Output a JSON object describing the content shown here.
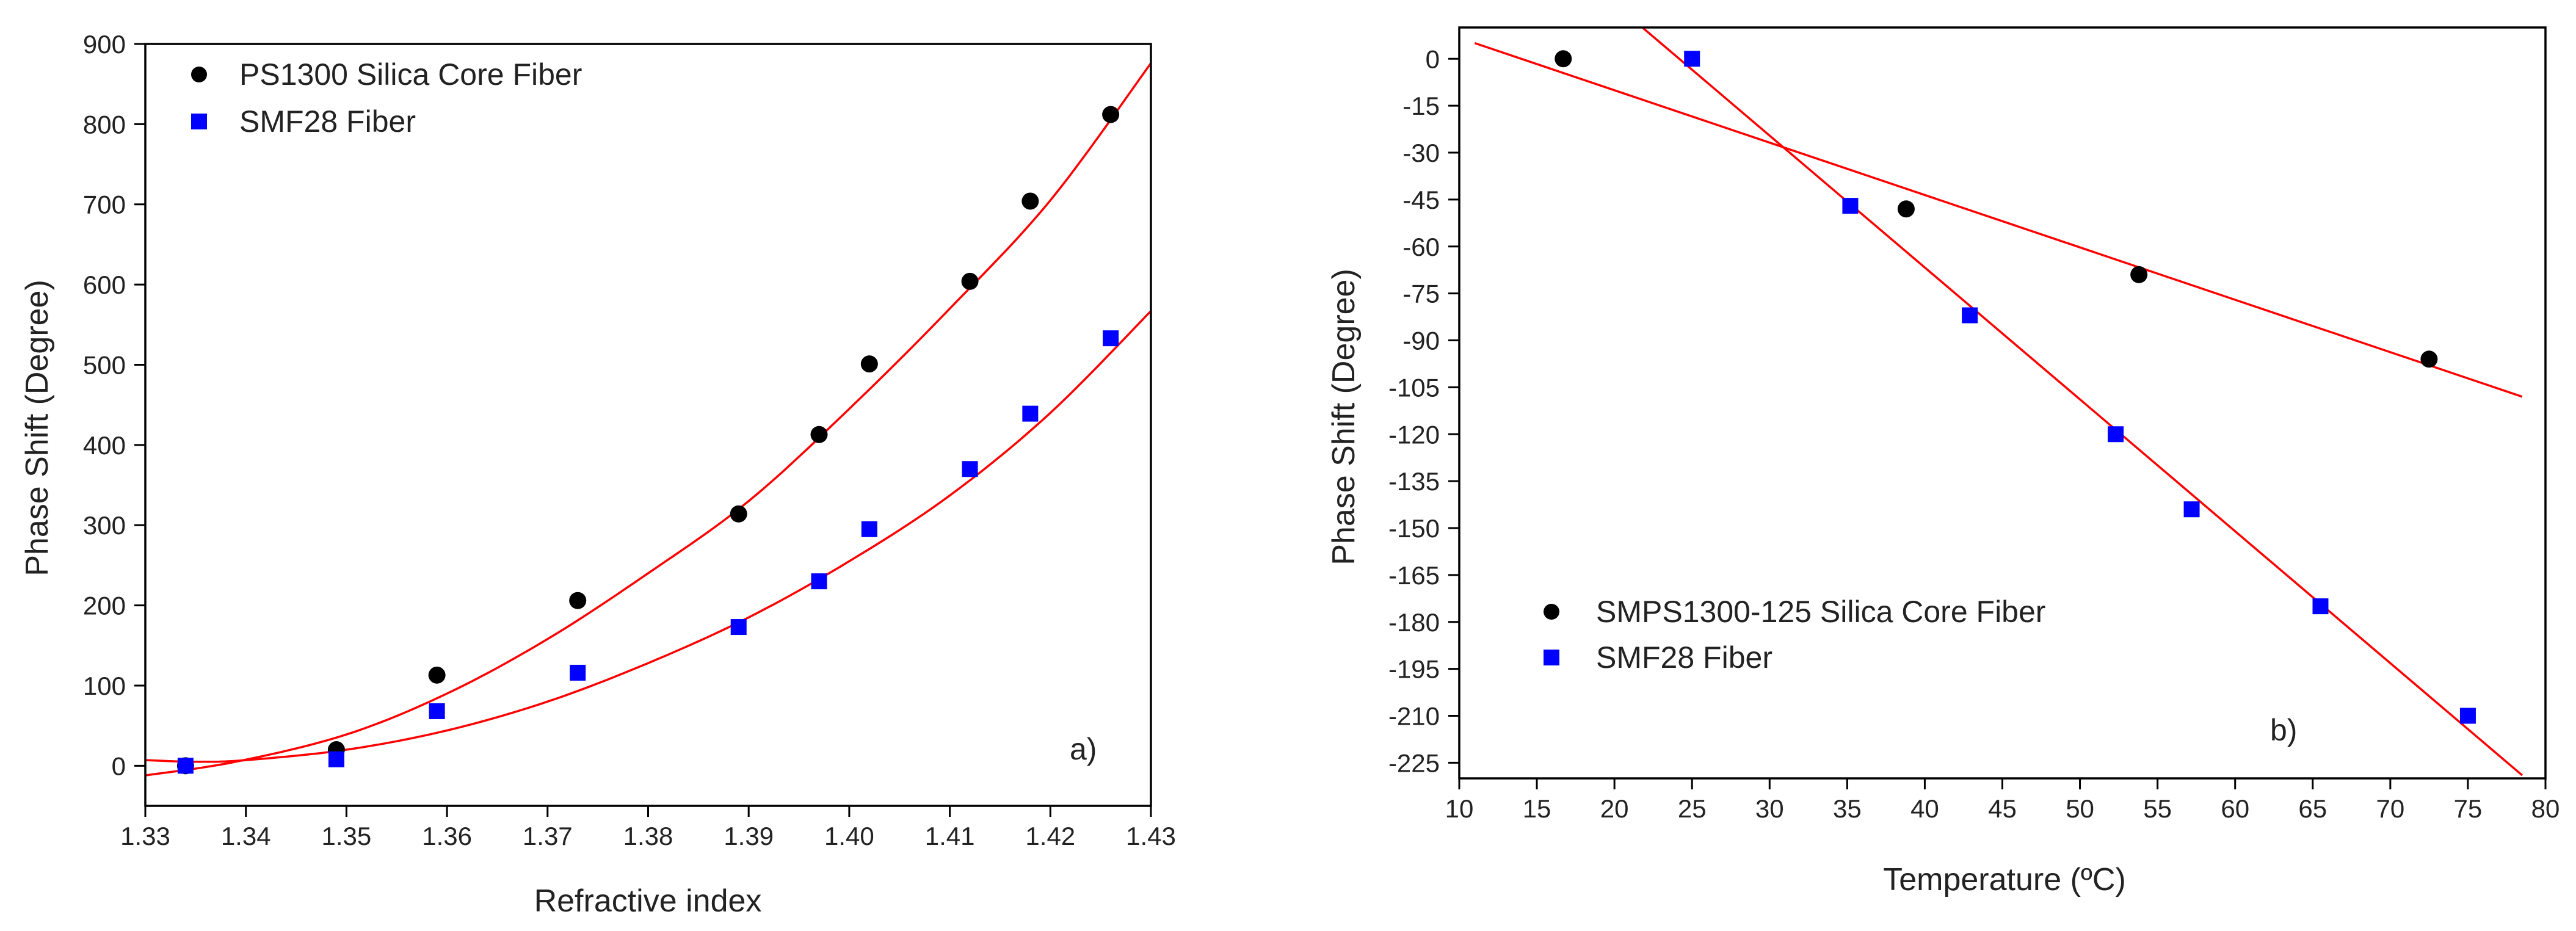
{
  "figure": {
    "colors": {
      "background": "#ffffff",
      "axis": "#000000",
      "fit_line": "#ff0000",
      "series_silica": "#000000",
      "series_smf28": "#0000ff"
    }
  },
  "chart_data": [
    {
      "type": "scatter",
      "panel_label": "a)",
      "title": "",
      "xlabel": "Refractive index",
      "ylabel": "Phase Shift (Degree)",
      "xlim": [
        1.33,
        1.43
      ],
      "ylim": [
        -50,
        900
      ],
      "x_ticks": [
        "1.33",
        "1.34",
        "1.35",
        "1.36",
        "1.37",
        "1.38",
        "1.39",
        "1.40",
        "1.41",
        "1.42",
        "1.43"
      ],
      "y_ticks": [
        "0",
        "100",
        "200",
        "300",
        "400",
        "500",
        "600",
        "700",
        "800",
        "900"
      ],
      "grid": false,
      "legend_position": "top-left",
      "series": [
        {
          "name": "PS1300 Silica Core Fiber",
          "marker": "circle",
          "color": "#000000",
          "x": [
            1.334,
            1.349,
            1.359,
            1.373,
            1.389,
            1.397,
            1.402,
            1.412,
            1.418,
            1.426
          ],
          "y": [
            0,
            20,
            113,
            206,
            314,
            413,
            501,
            604,
            704,
            812
          ]
        },
        {
          "name": "SMF28 Fiber",
          "marker": "square",
          "color": "#0000ff",
          "x": [
            1.334,
            1.349,
            1.359,
            1.373,
            1.389,
            1.397,
            1.402,
            1.412,
            1.418,
            1.426
          ],
          "y": [
            0,
            8,
            68,
            116,
            173,
            230,
            295,
            370,
            439,
            533
          ]
        }
      ],
      "fits": [
        {
          "name": "PS1300 quadratic fit",
          "type": "quadratic",
          "color": "#ff0000",
          "x": [
            1.33,
            1.339,
            1.35,
            1.36,
            1.37,
            1.38,
            1.39,
            1.4,
            1.41,
            1.42,
            1.43
          ],
          "y": [
            -12,
            5,
            39,
            90,
            158,
            240,
            330,
            445,
            570,
            705,
            876
          ]
        },
        {
          "name": "SMF28 quadratic fit",
          "type": "quadratic",
          "color": "#ff0000",
          "x": [
            1.33,
            1.335,
            1.34,
            1.35,
            1.36,
            1.37,
            1.38,
            1.39,
            1.4,
            1.41,
            1.42,
            1.43
          ],
          "y": [
            7,
            5,
            7,
            20,
            44,
            80,
            128,
            185,
            255,
            337,
            440,
            567
          ]
        }
      ]
    },
    {
      "type": "scatter",
      "panel_label": "b)",
      "title": "",
      "xlabel": "Temperature (ºC)",
      "ylabel": "Phase Shift (Degree)",
      "xlim": [
        10,
        80
      ],
      "ylim": [
        -230,
        10
      ],
      "x_ticks": [
        "10",
        "15",
        "20",
        "25",
        "30",
        "35",
        "40",
        "45",
        "50",
        "55",
        "60",
        "65",
        "70",
        "75",
        "80"
      ],
      "y_ticks": [
        "0",
        "-15",
        "-30",
        "-45",
        "-60",
        "-75",
        "-90",
        "-105",
        "-120",
        "-135",
        "-150",
        "-165",
        "-180",
        "-195",
        "-210",
        "-225"
      ],
      "grid": false,
      "legend_position": "bottom-left",
      "series": [
        {
          "name": "SMPS1300-125 Silica Core Fiber",
          "marker": "circle",
          "color": "#000000",
          "x": [
            16.7,
            38.8,
            53.8,
            72.5
          ],
          "y": [
            0,
            -48,
            -69,
            -96
          ]
        },
        {
          "name": "SMF28 Fiber",
          "marker": "square",
          "color": "#0000ff",
          "x": [
            25,
            35.2,
            42.9,
            52.3,
            57.2,
            65.5,
            75
          ],
          "y": [
            0,
            -47,
            -82,
            -120,
            -144,
            -175,
            -210
          ]
        }
      ],
      "fits": [
        {
          "name": "SMPS1300-125 linear fit",
          "type": "linear",
          "color": "#ff0000",
          "x": [
            11,
            78.5
          ],
          "y": [
            5,
            -108
          ]
        },
        {
          "name": "SMF28 linear fit",
          "type": "linear",
          "color": "#ff0000",
          "x": [
            21.8,
            78.5
          ],
          "y": [
            10,
            -229
          ]
        }
      ]
    }
  ]
}
